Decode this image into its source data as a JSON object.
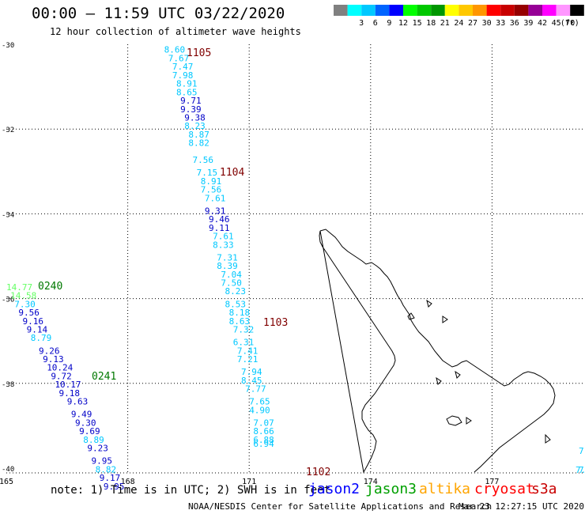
{
  "header": {
    "title": "00:00 – 11:59 UTC 03/22/2020",
    "subtitle": "12 hour collection of altimeter wave heights"
  },
  "color_scale": {
    "unit": "(ft)",
    "bins": [
      {
        "label": "",
        "color": "#808080"
      },
      {
        "label": "3",
        "color": "#00ffff"
      },
      {
        "label": "6",
        "color": "#00c8ff"
      },
      {
        "label": "9",
        "color": "#0064ff"
      },
      {
        "label": "12",
        "color": "#0000ff"
      },
      {
        "label": "15",
        "color": "#00ff00"
      },
      {
        "label": "18",
        "color": "#00c800"
      },
      {
        "label": "21",
        "color": "#009600"
      },
      {
        "label": "24",
        "color": "#ffff00"
      },
      {
        "label": "27",
        "color": "#ffc800"
      },
      {
        "label": "30",
        "color": "#ff9600"
      },
      {
        "label": "33",
        "color": "#ff0000"
      },
      {
        "label": "36",
        "color": "#c80000"
      },
      {
        "label": "39",
        "color": "#960000"
      },
      {
        "label": "42",
        "color": "#960096"
      },
      {
        "label": "45",
        "color": "#ff00ff"
      },
      {
        "label": "70",
        "color": "#ff96ff"
      },
      {
        "label": "",
        "color": "#000000"
      }
    ]
  },
  "axes": {
    "lon_labels": [
      "165",
      "168",
      "171",
      "174",
      "177"
    ],
    "lat_labels": [
      "-30",
      "-32",
      "-34",
      "-36",
      "-38",
      "-40"
    ]
  },
  "passes": [
    {
      "label": "1105",
      "color": "#800000"
    },
    {
      "label": "1104",
      "color": "#800000"
    },
    {
      "label": "1103",
      "color": "#800000"
    },
    {
      "label": "1102",
      "color": "#800000"
    },
    {
      "label": "0240",
      "color": "#007800"
    },
    {
      "label": "0241",
      "color": "#007800"
    }
  ],
  "track_east": [
    {
      "lon": 168.9,
      "lat": -30.2,
      "v": "8.60",
      "c": "#00c8ff"
    },
    {
      "lon": 169.0,
      "lat": -30.4,
      "v": "7.67",
      "c": "#00c8ff"
    },
    {
      "lon": 169.1,
      "lat": -30.6,
      "v": "7.47",
      "c": "#00c8ff"
    },
    {
      "lon": 169.1,
      "lat": -30.8,
      "v": "7.98",
      "c": "#00c8ff"
    },
    {
      "lon": 169.2,
      "lat": -31.0,
      "v": "8.91",
      "c": "#00c8ff"
    },
    {
      "lon": 169.2,
      "lat": -31.2,
      "v": "8.65",
      "c": "#00c8ff"
    },
    {
      "lon": 169.3,
      "lat": -31.4,
      "v": "9.71",
      "c": "#0000c8"
    },
    {
      "lon": 169.3,
      "lat": -31.6,
      "v": "9.39",
      "c": "#0000c8"
    },
    {
      "lon": 169.4,
      "lat": -31.8,
      "v": "9.38",
      "c": "#0000c8"
    },
    {
      "lon": 169.4,
      "lat": -32.0,
      "v": "8.23",
      "c": "#00c8ff"
    },
    {
      "lon": 169.5,
      "lat": -32.2,
      "v": "8.87",
      "c": "#00c8ff"
    },
    {
      "lon": 169.5,
      "lat": -32.4,
      "v": "8.82",
      "c": "#00c8ff"
    },
    {
      "lon": 169.6,
      "lat": -32.8,
      "v": "7.56",
      "c": "#00c8ff"
    },
    {
      "lon": 169.7,
      "lat": -33.1,
      "v": "7.15",
      "c": "#00c8ff"
    },
    {
      "lon": 169.8,
      "lat": -33.3,
      "v": "8.91",
      "c": "#00c8ff"
    },
    {
      "lon": 169.8,
      "lat": -33.5,
      "v": "7.56",
      "c": "#00c8ff"
    },
    {
      "lon": 169.9,
      "lat": -33.7,
      "v": "7.61",
      "c": "#00c8ff"
    },
    {
      "lon": 169.9,
      "lat": -34.0,
      "v": "9.31",
      "c": "#0000c8"
    },
    {
      "lon": 170.0,
      "lat": -34.2,
      "v": "9.46",
      "c": "#0000c8"
    },
    {
      "lon": 170.0,
      "lat": -34.4,
      "v": "9.11",
      "c": "#0000c8"
    },
    {
      "lon": 170.1,
      "lat": -34.6,
      "v": "7.61",
      "c": "#00c8ff"
    },
    {
      "lon": 170.1,
      "lat": -34.8,
      "v": "8.33",
      "c": "#00c8ff"
    },
    {
      "lon": 170.2,
      "lat": -35.1,
      "v": "7.31",
      "c": "#00c8ff"
    },
    {
      "lon": 170.2,
      "lat": -35.3,
      "v": "8.39",
      "c": "#00c8ff"
    },
    {
      "lon": 170.3,
      "lat": -35.5,
      "v": "7.04",
      "c": "#00c8ff"
    },
    {
      "lon": 170.3,
      "lat": -35.7,
      "v": "7.50",
      "c": "#00c8ff"
    },
    {
      "lon": 170.4,
      "lat": -35.9,
      "v": "8.23",
      "c": "#00c8ff"
    },
    {
      "lon": 170.4,
      "lat": -36.2,
      "v": "8.53",
      "c": "#00c8ff"
    },
    {
      "lon": 170.5,
      "lat": -36.4,
      "v": "8.18",
      "c": "#00c8ff"
    },
    {
      "lon": 170.5,
      "lat": -36.6,
      "v": "8.63",
      "c": "#00c8ff"
    },
    {
      "lon": 170.6,
      "lat": -36.8,
      "v": "7.32",
      "c": "#00c8ff"
    },
    {
      "lon": 170.6,
      "lat": -37.1,
      "v": "6.31",
      "c": "#00c8ff"
    },
    {
      "lon": 170.7,
      "lat": -37.3,
      "v": "7.41",
      "c": "#00c8ff"
    },
    {
      "lon": 170.7,
      "lat": -37.5,
      "v": "7.21",
      "c": "#00c8ff"
    },
    {
      "lon": 170.8,
      "lat": -37.8,
      "v": "7.94",
      "c": "#00c8ff"
    },
    {
      "lon": 170.8,
      "lat": -38.0,
      "v": "8.45",
      "c": "#00c8ff"
    },
    {
      "lon": 170.9,
      "lat": -38.2,
      "v": "7.77",
      "c": "#00c8ff"
    },
    {
      "lon": 171.0,
      "lat": -38.5,
      "v": "7.65",
      "c": "#00c8ff"
    },
    {
      "lon": 171.0,
      "lat": -38.7,
      "v": "4.90",
      "c": "#00c8ff"
    },
    {
      "lon": 171.1,
      "lat": -39.0,
      "v": "7.07",
      "c": "#00c8ff"
    },
    {
      "lon": 171.1,
      "lat": -39.2,
      "v": "8.66",
      "c": "#00c8ff"
    },
    {
      "lon": 171.1,
      "lat": -39.4,
      "v": "6.88",
      "c": "#00c8ff"
    },
    {
      "lon": 171.1,
      "lat": -39.5,
      "v": "6.94",
      "c": "#00c8ff"
    }
  ],
  "track_west": [
    {
      "lon": 165.0,
      "lat": -35.8,
      "v": "14.77",
      "c": "#64ff64"
    },
    {
      "lon": 165.1,
      "lat": -36.0,
      "v": "14.58",
      "c": "#64ff64"
    },
    {
      "lon": 165.2,
      "lat": -36.2,
      "v": "7.30",
      "c": "#00c8ff"
    },
    {
      "lon": 165.3,
      "lat": -36.4,
      "v": "9.56",
      "c": "#0000c8"
    },
    {
      "lon": 165.4,
      "lat": -36.6,
      "v": "9.16",
      "c": "#0000c8"
    },
    {
      "lon": 165.5,
      "lat": -36.8,
      "v": "9.14",
      "c": "#0000c8"
    },
    {
      "lon": 165.6,
      "lat": -37.0,
      "v": "8.79",
      "c": "#00c8ff"
    },
    {
      "lon": 165.8,
      "lat": -37.3,
      "v": "9.26",
      "c": "#0000c8"
    },
    {
      "lon": 165.9,
      "lat": -37.5,
      "v": "9.13",
      "c": "#0000c8"
    },
    {
      "lon": 166.0,
      "lat": -37.7,
      "v": "10.24",
      "c": "#0000c8"
    },
    {
      "lon": 166.1,
      "lat": -37.9,
      "v": "9.72",
      "c": "#0000c8"
    },
    {
      "lon": 166.2,
      "lat": -38.1,
      "v": "10.17",
      "c": "#0000c8"
    },
    {
      "lon": 166.3,
      "lat": -38.3,
      "v": "9.18",
      "c": "#0000c8"
    },
    {
      "lon": 166.5,
      "lat": -38.5,
      "v": "9.63",
      "c": "#0000c8"
    },
    {
      "lon": 166.6,
      "lat": -38.8,
      "v": "9.49",
      "c": "#0000c8"
    },
    {
      "lon": 166.7,
      "lat": -39.0,
      "v": "9.30",
      "c": "#0000c8"
    },
    {
      "lon": 166.8,
      "lat": -39.2,
      "v": "9.69",
      "c": "#0000c8"
    },
    {
      "lon": 166.9,
      "lat": -39.4,
      "v": "8.89",
      "c": "#00c8ff"
    },
    {
      "lon": 167.0,
      "lat": -39.6,
      "v": "9.23",
      "c": "#0000c8"
    },
    {
      "lon": 167.1,
      "lat": -39.9,
      "v": "9.95",
      "c": "#0000c8"
    },
    {
      "lon": 167.2,
      "lat": -40.1,
      "v": "8.82",
      "c": "#00c8ff"
    },
    {
      "lon": 167.3,
      "lat": -40.3,
      "v": "9.17",
      "c": "#0000c8"
    },
    {
      "lon": 167.4,
      "lat": -40.5,
      "v": "9.95",
      "c": "#0000c8"
    }
  ],
  "edge_labels": [
    {
      "v": "7",
      "c": "#00c8ff"
    },
    {
      "v": "7",
      "c": "#00c8ff"
    },
    {
      "v": "7.",
      "c": "#00c8ff"
    }
  ],
  "footer": {
    "note": "note: 1) Time is in UTC; 2) SWH is in feet",
    "credit": "NOAA/NESDIS Center for Satellite Applications and Research",
    "timestamp": "Mar 23 12:27:15 UTC 2020"
  },
  "satellites": [
    {
      "name": "jason2",
      "color": "#0000ff"
    },
    {
      "name": "jason3",
      "color": "#00a000"
    },
    {
      "name": "altika",
      "color": "#ffa500"
    },
    {
      "name": "cryosat",
      "color": "#ff0000"
    },
    {
      "name": "s3a",
      "color": "#c80000"
    }
  ]
}
